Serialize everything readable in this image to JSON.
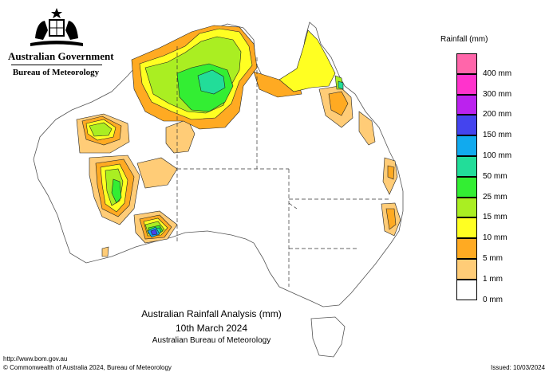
{
  "header": {
    "government": "Australian Government",
    "bureau": "Bureau of Meteorology"
  },
  "legend": {
    "title": "Rainfall (mm)",
    "items": [
      {
        "label": "",
        "color": "#ff66aa"
      },
      {
        "label": "400 mm",
        "color": "#ff33cc"
      },
      {
        "label": "300 mm",
        "color": "#bb22ee"
      },
      {
        "label": "200 mm",
        "color": "#4444ee"
      },
      {
        "label": "150 mm",
        "color": "#11aaee"
      },
      {
        "label": "100 mm",
        "color": "#22dd99"
      },
      {
        "label": "50 mm",
        "color": "#33ee33"
      },
      {
        "label": "25 mm",
        "color": "#aaee22"
      },
      {
        "label": "15 mm",
        "color": "#ffff22"
      },
      {
        "label": "10 mm",
        "color": "#ffaa22"
      },
      {
        "label": "5 mm",
        "color": "#ffcc77"
      },
      {
        "label": "1 mm",
        "color": "#ffffff"
      },
      {
        "label": "0 mm",
        "color": ""
      }
    ]
  },
  "titles": {
    "line1": "Australian Rainfall Analysis (mm)",
    "line2": "10th March 2024",
    "line3": "Australian Bureau of Meteorology"
  },
  "footer": {
    "url": "http://www.bom.gov.au",
    "copyright": "© Commonwealth of Australia 2024, Bureau of Meteorology",
    "issued": "Issued: 10/03/2024"
  }
}
